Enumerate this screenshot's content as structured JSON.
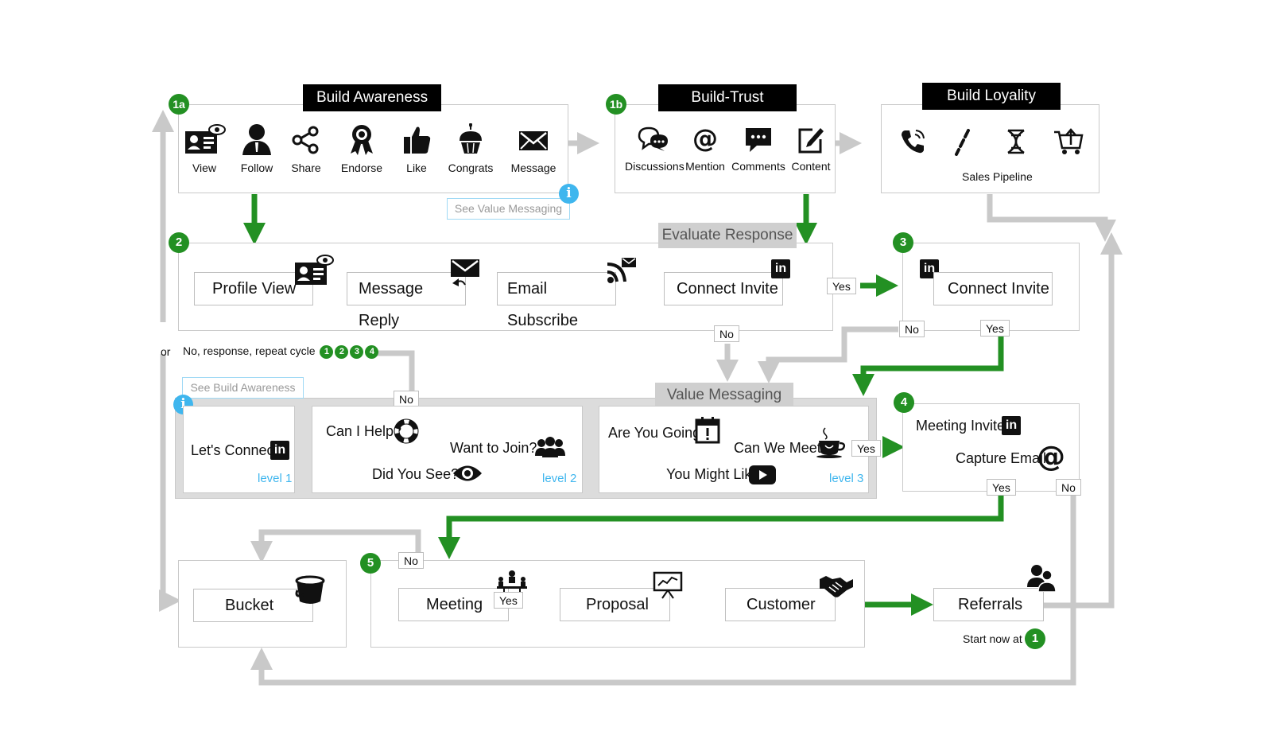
{
  "colors": {
    "green": "#239023",
    "gray": "#c9c9c9",
    "blue": "#3fb6ee",
    "black": "#000000"
  },
  "stage1a": {
    "badge": "1a",
    "title": "Build Awareness",
    "items": [
      {
        "label": "View",
        "icon": "profile-card-eye-icon"
      },
      {
        "label": "Follow",
        "icon": "person-icon"
      },
      {
        "label": "Share",
        "icon": "share-icon"
      },
      {
        "label": "Endorse",
        "icon": "award-ribbon-icon"
      },
      {
        "label": "Like",
        "icon": "thumbs-up-icon"
      },
      {
        "label": "Congrats",
        "icon": "cupcake-icon"
      },
      {
        "label": "Message",
        "icon": "envelope-icon"
      }
    ],
    "see_link": "See Value Messaging"
  },
  "stage1b": {
    "badge": "1b",
    "title": "Build-Trust",
    "items": [
      {
        "label": "Discussions",
        "icon": "chat-bubbles-icon"
      },
      {
        "label": "Mention",
        "icon": "at-sign-icon"
      },
      {
        "label": "Comments",
        "icon": "comment-icon"
      },
      {
        "label": "Content",
        "icon": "edit-icon"
      }
    ]
  },
  "loyalty": {
    "title": "Build Loyality",
    "label": "Sales Pipeline",
    "icons": [
      "phone-icon",
      "pipeline-link-icon",
      "dna-icon",
      "cart-icon"
    ]
  },
  "stage2": {
    "badge": "2",
    "title": "Evaluate Response",
    "items": [
      "Profile View",
      "Message Reply",
      "Email Subscribe",
      "Connect Invite"
    ]
  },
  "stage3": {
    "badge": "3",
    "item": "Connect Invite"
  },
  "tags": {
    "yes": "Yes",
    "no": "No"
  },
  "or_text": "or",
  "repeat": {
    "text": "No, response, repeat cycle",
    "steps": [
      "1",
      "2",
      "3",
      "4"
    ]
  },
  "value_messaging": {
    "title": "Value Messaging",
    "see_link": "See Build Awareness",
    "level1": {
      "text": "Let's Connect",
      "level": "level 1"
    },
    "level2": {
      "help": "Can I Help?",
      "join": "Want to Join?",
      "see": "Did You See?",
      "level": "level 2"
    },
    "level3": {
      "going": "Are You Going?",
      "meet": "Can We Meet?",
      "like": "You Might Like",
      "level": "level 3"
    }
  },
  "stage4": {
    "badge": "4",
    "meeting": "Meeting Invite",
    "email": "Capture Email"
  },
  "stage5": {
    "badge": "5",
    "items": [
      "Meeting",
      "Proposal",
      "Customer"
    ]
  },
  "bucket": "Bucket",
  "referrals": "Referrals",
  "start": {
    "text": "Start now at",
    "step": "1"
  }
}
